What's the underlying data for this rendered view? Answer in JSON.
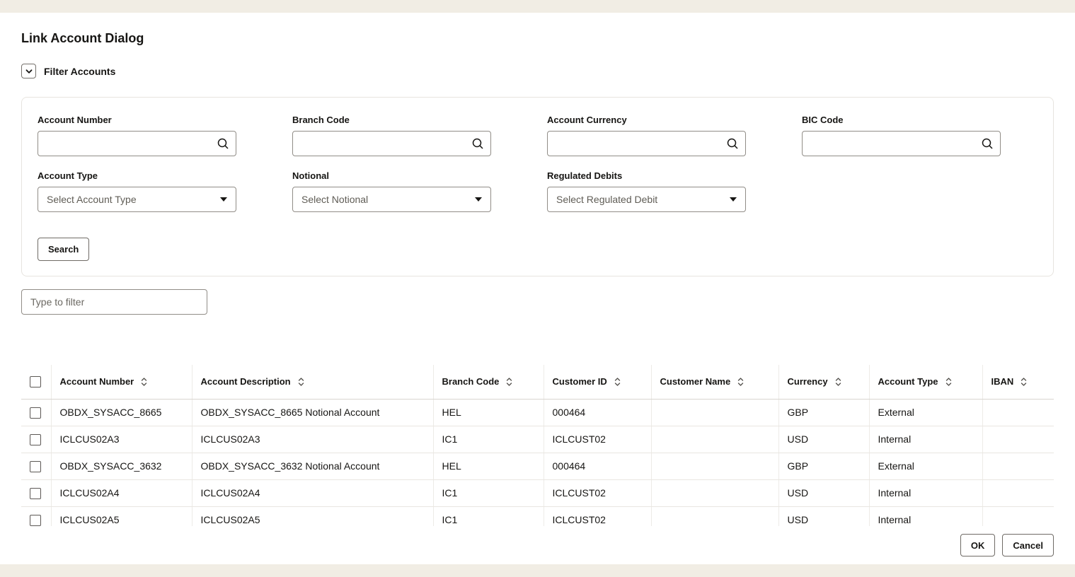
{
  "header": {
    "title": "Link Account Dialog"
  },
  "filter_section": {
    "label": "Filter Accounts",
    "fields": {
      "account_number": "Account Number",
      "branch_code": "Branch Code",
      "account_currency": "Account Currency",
      "bic_code": "BIC Code",
      "account_type": "Account Type",
      "account_type_placeholder": "Select Account Type",
      "notional": "Notional",
      "notional_placeholder": "Select Notional",
      "regulated_debits": "Regulated Debits",
      "regulated_debits_placeholder": "Select Regulated Debit"
    },
    "search_button": "Search"
  },
  "quick_filter": {
    "placeholder": "Type to filter"
  },
  "table": {
    "columns": [
      "Account Number",
      "Account Description",
      "Branch Code",
      "Customer ID",
      "Customer Name",
      "Currency",
      "Account Type",
      "IBAN"
    ],
    "rows": [
      [
        "OBDX_SYSACC_8665",
        "OBDX_SYSACC_8665 Notional Account",
        "HEL",
        "000464",
        "",
        "GBP",
        "External",
        ""
      ],
      [
        "ICLCUS02A3",
        "ICLCUS02A3",
        "IC1",
        "ICLCUST02",
        "",
        "USD",
        "Internal",
        ""
      ],
      [
        "OBDX_SYSACC_3632",
        "OBDX_SYSACC_3632 Notional Account",
        "HEL",
        "000464",
        "",
        "GBP",
        "External",
        ""
      ],
      [
        "ICLCUS02A4",
        "ICLCUS02A4",
        "IC1",
        "ICLCUST02",
        "",
        "USD",
        "Internal",
        ""
      ],
      [
        "ICLCUS02A5",
        "ICLCUS02A5",
        "IC1",
        "ICLCUST02",
        "",
        "USD",
        "Internal",
        ""
      ]
    ]
  },
  "footer": {
    "ok_button": "OK",
    "cancel_button": "Cancel"
  },
  "colors": {
    "background": "#f1ede4",
    "text": "#161513",
    "input_border": "#918d87",
    "panel_border": "#e7e4df",
    "table_line": "#e9e6e1"
  }
}
